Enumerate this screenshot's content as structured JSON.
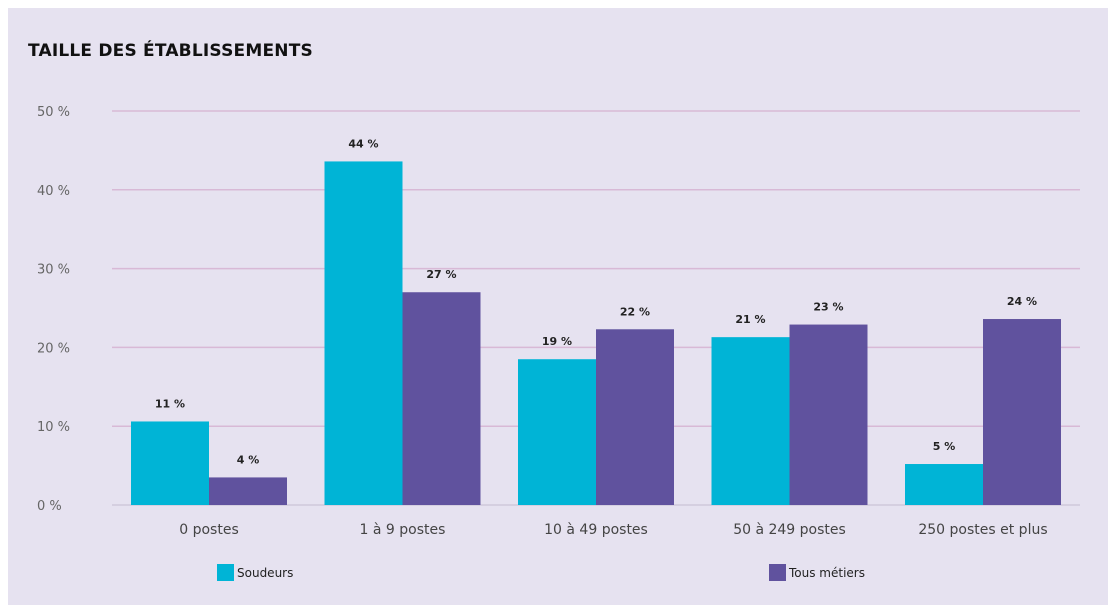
{
  "chart_data": {
    "type": "bar",
    "title": "TAILLE DES ÉTABLISSEMENTS",
    "categories": [
      "0 postes",
      "1 à 9 postes",
      "10 à 49 postes",
      "50 à 249 postes",
      "250 postes et plus"
    ],
    "series": [
      {
        "name": "Soudeurs",
        "color": "#00b4d6",
        "values": [
          10.6,
          43.6,
          18.5,
          21.3,
          5.2
        ],
        "labels": [
          "11 %",
          "44 %",
          "19 %",
          "21 %",
          "5 %"
        ]
      },
      {
        "name": "Tous métiers",
        "color": "#60529e",
        "values": [
          3.5,
          27.0,
          22.3,
          22.9,
          23.6
        ],
        "labels": [
          "4 %",
          "27 %",
          "22 %",
          "23 %",
          "24 %"
        ]
      }
    ],
    "ylim": [
      0,
      50
    ],
    "yticks": [
      0,
      10,
      20,
      30,
      40,
      50
    ],
    "ytick_labels": [
      "0 %",
      "10 %",
      "20 %",
      "30 %",
      "40 %",
      "50 %"
    ],
    "grid": true,
    "legend_position": "bottom"
  }
}
